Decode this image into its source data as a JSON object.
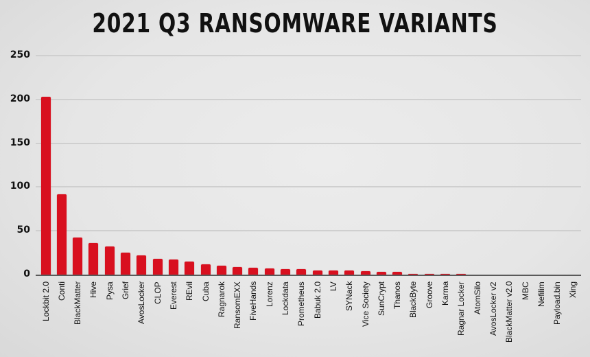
{
  "chart_data": {
    "type": "bar",
    "title": "2021 Q3 RANSOMWARE VARIANTS",
    "xlabel": "",
    "ylabel": "",
    "ylim": [
      0,
      250
    ],
    "yticks": [
      0,
      50,
      100,
      150,
      200,
      250
    ],
    "grid": true,
    "legend": null,
    "bar_color": "#d8101f",
    "categories": [
      "Lockbit 2.0",
      "Conti",
      "BlackMatter",
      "Hive",
      "Pysa",
      "Grief",
      "AvosLocker",
      "CLOP",
      "Everest",
      "REvil",
      "Cuba",
      "Ragnarok",
      "RansomEXX",
      "FiveHands",
      "Lorenz",
      "Lockdata",
      "Prometheus",
      "Babuk 2.0",
      "LV",
      "SYNack",
      "Vice Society",
      "SunCrypt",
      "Thanos",
      "BlackByte",
      "Groove",
      "Karma",
      "Ragnar Locker",
      "AtomSilo",
      "AvosLocker v2",
      "BlackMatter v2.0",
      "MBC",
      "Nefilim",
      "Payload.bin",
      "Xing"
    ],
    "values": [
      203,
      92,
      42,
      36,
      32,
      25,
      22,
      18,
      17,
      15,
      12,
      10,
      9,
      8,
      7,
      6,
      6,
      5,
      5,
      5,
      4,
      3,
      3,
      1,
      1,
      1,
      1,
      0,
      0,
      0,
      0,
      0,
      0,
      0
    ]
  }
}
